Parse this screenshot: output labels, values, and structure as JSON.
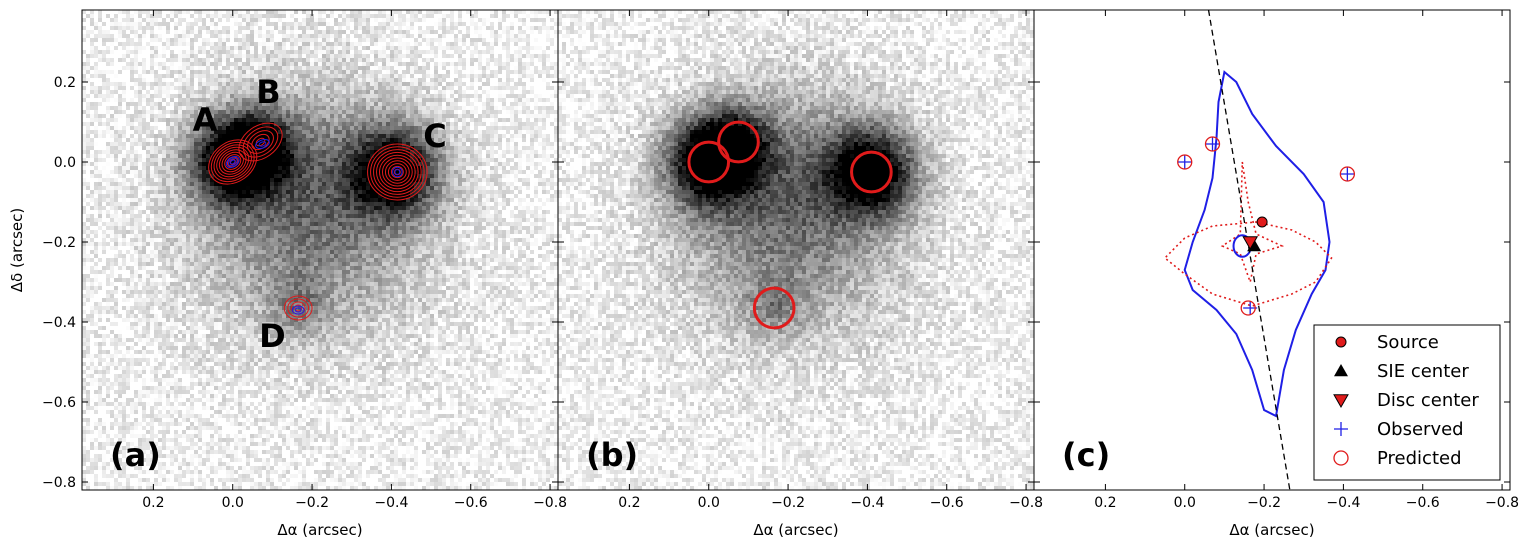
{
  "figure": {
    "shared": {
      "xlabel": "Δα (arcsec)",
      "ylabel": "Δδ (arcsec)",
      "xlim": [
        0.38,
        -0.82
      ],
      "ylim": [
        -0.82,
        0.38
      ],
      "x_ticks": [
        0.2,
        0.0,
        -0.2,
        -0.4,
        -0.6,
        -0.8
      ],
      "x_tick_labels": [
        "0.2",
        "0.0",
        "−0.2",
        "−0.4",
        "−0.6",
        "−0.8"
      ],
      "y_ticks": [
        0.2,
        0.0,
        -0.2,
        -0.4,
        -0.6,
        -0.8
      ],
      "y_tick_labels": [
        "0.2",
        "0.0",
        "−0.2",
        "−0.4",
        "−0.6",
        "−0.8"
      ]
    },
    "colors": {
      "red": "#e01b1b",
      "blue": "#1f1fe6",
      "black": "#000000"
    }
  },
  "chart_data": [
    {
      "type": "scatter",
      "panel_label": "(a)",
      "background": "greyscale image of the lens galaxy and lensed images",
      "image_labels": [
        {
          "text": "A",
          "x": 0.07,
          "y": 0.1
        },
        {
          "text": "B",
          "x": -0.09,
          "y": 0.17
        },
        {
          "text": "C",
          "x": -0.51,
          "y": 0.06
        },
        {
          "text": "D",
          "x": -0.1,
          "y": -0.44
        }
      ],
      "contour_groups": [
        {
          "color": "red",
          "x": 0.0,
          "y": 0.0,
          "rx": 0.065,
          "ry": 0.05,
          "angle": -35,
          "levels": 9
        },
        {
          "color": "red",
          "x": -0.07,
          "y": 0.05,
          "rx": 0.06,
          "ry": 0.04,
          "angle": -35,
          "levels": 5
        },
        {
          "color": "red",
          "x": -0.415,
          "y": -0.025,
          "rx": 0.075,
          "ry": 0.07,
          "angle": 0,
          "levels": 10
        },
        {
          "color": "red",
          "x": -0.165,
          "y": -0.365,
          "rx": 0.035,
          "ry": 0.03,
          "angle": 0,
          "levels": 4
        },
        {
          "color": "blue",
          "x": 0.0,
          "y": 0.0,
          "rx": 0.018,
          "ry": 0.012,
          "angle": -35,
          "levels": 3
        },
        {
          "color": "blue",
          "x": -0.075,
          "y": 0.045,
          "rx": 0.018,
          "ry": 0.01,
          "angle": -20,
          "levels": 2
        },
        {
          "color": "blue",
          "x": -0.415,
          "y": -0.025,
          "rx": 0.012,
          "ry": 0.012,
          "angle": 0,
          "levels": 2
        },
        {
          "color": "blue",
          "x": -0.165,
          "y": -0.37,
          "rx": 0.015,
          "ry": 0.01,
          "angle": 0,
          "levels": 2
        }
      ]
    },
    {
      "type": "scatter",
      "panel_label": "(b)",
      "background": "greyscale image of the lens galaxy and lensed images",
      "markers": [
        {
          "shape": "circle",
          "color": "red",
          "x": 0.0,
          "y": 0.0,
          "r": 0.05
        },
        {
          "shape": "circle",
          "color": "red",
          "x": -0.075,
          "y": 0.05,
          "r": 0.05
        },
        {
          "shape": "circle",
          "color": "red",
          "x": -0.41,
          "y": -0.025,
          "r": 0.05
        },
        {
          "shape": "circle",
          "color": "red",
          "x": -0.165,
          "y": -0.365,
          "r": 0.05
        }
      ]
    },
    {
      "type": "line",
      "panel_label": "(c)",
      "critical_curve": {
        "color": "blue",
        "points": [
          [
            -0.1,
            0.225
          ],
          [
            -0.13,
            0.2
          ],
          [
            -0.17,
            0.12
          ],
          [
            -0.23,
            0.04
          ],
          [
            -0.3,
            -0.03
          ],
          [
            -0.35,
            -0.1
          ],
          [
            -0.365,
            -0.2
          ],
          [
            -0.355,
            -0.27
          ],
          [
            -0.32,
            -0.33
          ],
          [
            -0.28,
            -0.42
          ],
          [
            -0.25,
            -0.52
          ],
          [
            -0.23,
            -0.635
          ],
          [
            -0.2,
            -0.62
          ],
          [
            -0.17,
            -0.52
          ],
          [
            -0.13,
            -0.43
          ],
          [
            -0.08,
            -0.37
          ],
          [
            -0.02,
            -0.32
          ],
          [
            0.0,
            -0.27
          ],
          [
            -0.02,
            -0.2
          ],
          [
            -0.05,
            -0.12
          ],
          [
            -0.07,
            -0.04
          ],
          [
            -0.08,
            0.06
          ],
          [
            -0.085,
            0.15
          ],
          [
            -0.1,
            0.225
          ]
        ]
      },
      "caustic_curve": {
        "color": "red",
        "style": "dotted",
        "points": [
          [
            -0.18,
            -0.15
          ],
          [
            -0.27,
            -0.17
          ],
          [
            -0.33,
            -0.2
          ],
          [
            -0.37,
            -0.24
          ],
          [
            -0.33,
            -0.3
          ],
          [
            -0.27,
            -0.33
          ],
          [
            -0.17,
            -0.36
          ],
          [
            -0.07,
            -0.33
          ],
          [
            0.0,
            -0.28
          ],
          [
            0.05,
            -0.24
          ],
          [
            0.0,
            -0.19
          ],
          [
            -0.07,
            -0.16
          ],
          [
            -0.18,
            -0.15
          ]
        ]
      },
      "inner_caustic": {
        "color": "red",
        "style": "dotted",
        "points": [
          [
            -0.145,
            -0.0
          ],
          [
            -0.16,
            -0.1
          ],
          [
            -0.18,
            -0.18
          ],
          [
            -0.245,
            -0.21
          ],
          [
            -0.18,
            -0.23
          ],
          [
            -0.165,
            -0.3
          ],
          [
            -0.14,
            -0.23
          ],
          [
            -0.095,
            -0.21
          ],
          [
            -0.14,
            -0.18
          ],
          [
            -0.145,
            -0.0
          ]
        ]
      },
      "small_blue_loop": {
        "x": -0.145,
        "y": -0.21,
        "rx": 0.022,
        "ry": 0.027
      },
      "dashed_line": {
        "color": "black",
        "points": [
          [
            -0.06,
            0.38
          ],
          [
            -0.265,
            -0.82
          ]
        ]
      },
      "markers": [
        {
          "kind": "Source",
          "shape": "circle",
          "color": "red",
          "x": -0.195,
          "y": -0.15
        },
        {
          "kind": "SIE center",
          "shape": "triangle-up",
          "color": "black",
          "x": -0.175,
          "y": -0.21
        },
        {
          "kind": "Disc center",
          "shape": "triangle-down",
          "color": "red",
          "x": -0.165,
          "y": -0.2
        },
        {
          "kind": "Observed",
          "shape": "plus",
          "color": "blue",
          "x": 0.0,
          "y": 0.0
        },
        {
          "kind": "Observed",
          "shape": "plus",
          "color": "blue",
          "x": -0.07,
          "y": 0.045
        },
        {
          "kind": "Observed",
          "shape": "plus",
          "color": "blue",
          "x": -0.41,
          "y": -0.03
        },
        {
          "kind": "Observed",
          "shape": "plus",
          "color": "blue",
          "x": -0.165,
          "y": -0.365
        },
        {
          "kind": "Predicted",
          "shape": "open-circle",
          "color": "red",
          "x": 0.0,
          "y": 0.0
        },
        {
          "kind": "Predicted",
          "shape": "open-circle",
          "color": "red",
          "x": -0.07,
          "y": 0.045
        },
        {
          "kind": "Predicted",
          "shape": "open-circle",
          "color": "red",
          "x": -0.41,
          "y": -0.03
        },
        {
          "kind": "Predicted",
          "shape": "open-circle",
          "color": "red",
          "x": -0.16,
          "y": -0.365
        }
      ],
      "legend": {
        "placement": "lower-right",
        "entries": [
          {
            "label": "Source",
            "shape": "circle",
            "color": "red"
          },
          {
            "label": "SIE center",
            "shape": "triangle-up",
            "color": "black"
          },
          {
            "label": "Disc center",
            "shape": "triangle-down",
            "color": "red"
          },
          {
            "label": "Observed",
            "shape": "plus",
            "color": "blue"
          },
          {
            "label": "Predicted",
            "shape": "open-circle",
            "color": "red"
          }
        ]
      }
    }
  ]
}
